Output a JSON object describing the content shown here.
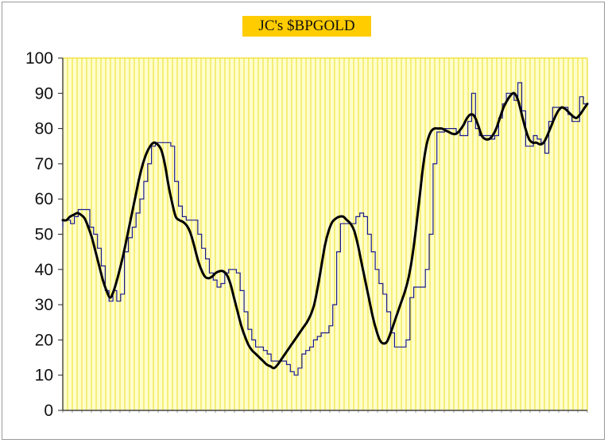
{
  "chart_data": {
    "type": "line",
    "title": "JC's $BPGOLD",
    "ylim": [
      0,
      100
    ],
    "yticks": [
      0,
      10,
      20,
      30,
      40,
      50,
      60,
      70,
      80,
      90,
      100
    ],
    "grid": "vertical lines only",
    "background_color": "#ffffcc",
    "grid_color": "#e8d400",
    "x_tick_labels_note": "",
    "series": [
      {
        "color": "#1a1a8c",
        "style": "thin",
        "values": [
          52,
          54,
          54,
          53,
          55,
          57,
          57,
          57,
          52,
          50,
          46,
          41,
          34,
          31,
          34,
          31,
          33,
          45,
          49,
          52,
          56,
          60,
          65,
          70,
          75,
          76,
          76,
          76,
          76,
          75,
          65,
          58,
          55,
          54,
          54,
          54,
          50,
          46,
          43,
          39,
          37,
          35,
          36,
          39,
          40,
          40,
          39,
          34,
          28,
          23,
          20,
          18,
          18,
          17,
          16,
          14,
          14,
          14,
          14,
          13,
          11,
          10,
          12,
          16,
          17,
          18,
          20,
          21,
          22,
          22,
          24,
          30,
          45,
          53,
          53,
          53,
          53,
          55,
          56,
          55,
          50,
          45,
          40,
          36,
          33,
          28,
          22,
          18,
          18,
          18,
          20,
          32,
          35,
          35,
          35,
          40,
          50,
          70,
          79,
          79,
          80,
          80,
          80,
          79,
          78,
          78,
          82,
          90,
          80,
          78,
          78,
          78,
          77,
          78,
          83,
          87,
          90,
          90,
          88,
          93,
          85,
          75,
          75,
          78,
          77,
          76,
          73,
          82,
          86,
          86,
          86,
          86,
          84,
          82,
          82,
          89,
          87
        ]
      },
      {
        "color": "#000000",
        "style": "thick",
        "values": [
          54,
          54,
          55,
          55.5,
          56,
          55.5,
          54.5,
          52,
          49,
          45,
          41,
          37,
          34,
          32,
          34,
          37.5,
          41.5,
          46,
          51,
          56,
          61,
          66,
          70,
          73,
          75,
          76,
          75.5,
          74,
          70,
          64,
          59,
          55,
          54,
          53.5,
          52.5,
          50.5,
          47,
          43,
          40,
          38,
          37.5,
          38,
          39,
          39.5,
          39.5,
          38.5,
          36,
          32,
          28,
          24,
          21,
          18.5,
          17,
          16,
          15,
          14,
          13,
          12.5,
          12,
          13,
          14.5,
          16,
          17.5,
          19,
          20.5,
          22,
          23.5,
          25,
          27,
          30,
          35,
          41,
          47,
          51,
          53.5,
          54.5,
          55,
          55,
          54,
          53,
          51,
          47,
          42,
          37,
          32,
          27,
          23,
          20,
          19,
          19.5,
          22,
          25,
          28,
          31,
          34,
          38,
          44,
          52,
          61,
          70,
          76,
          79,
          80,
          80,
          80,
          79.5,
          79,
          78.5,
          78.5,
          79.5,
          81,
          83,
          84,
          83.5,
          81,
          78,
          77,
          77,
          78,
          80,
          83,
          86,
          88,
          89.5,
          90,
          88,
          84,
          80,
          77,
          76,
          76,
          75.5,
          76,
          78,
          80.5,
          83,
          85,
          86,
          85.5,
          84.5,
          83.5,
          83,
          84,
          85.5,
          87
        ]
      }
    ]
  }
}
